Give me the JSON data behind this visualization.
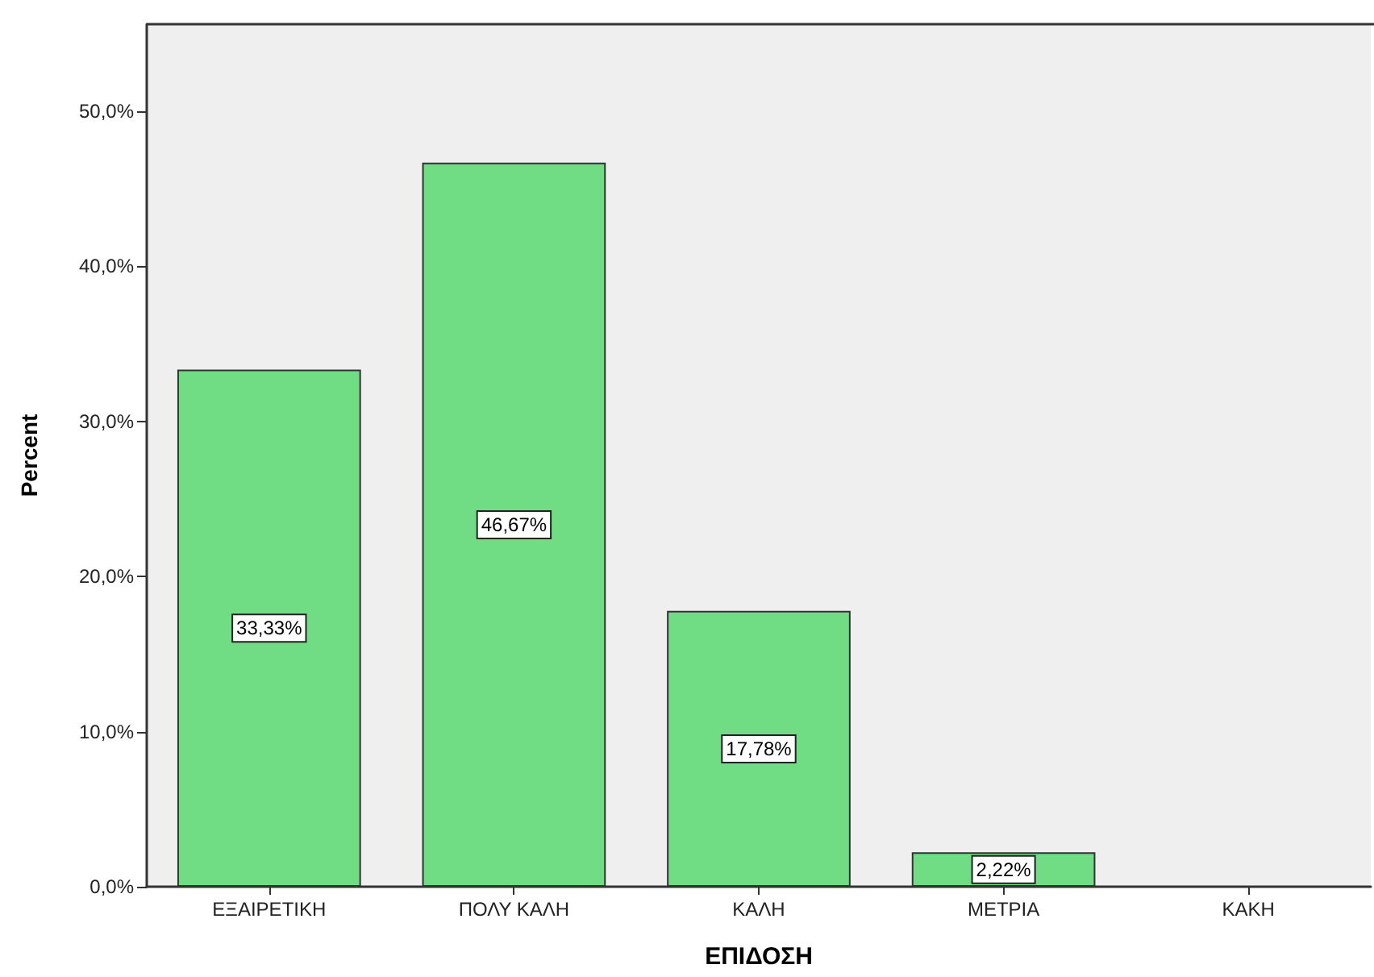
{
  "chart_data": {
    "type": "bar",
    "xlabel": "ΕΠΙΔΟΣΗ",
    "ylabel": "Percent",
    "categories": [
      "ΕΞΑΙΡΕΤΙΚΗ",
      "ΠΟΛΥ ΚΑΛΗ",
      "ΚΑΛΗ",
      "ΜΕΤΡΙΑ",
      "ΚΑΚΗ"
    ],
    "values": [
      33.33,
      46.67,
      17.78,
      2.22,
      0
    ],
    "value_labels": [
      "33,33%",
      "46,67%",
      "17,78%",
      "2,22%",
      null
    ],
    "color": "#70dc84",
    "ylim": [
      0,
      55.6
    ],
    "yticks": [
      {
        "value": 0,
        "label": "0,0%"
      },
      {
        "value": 10,
        "label": "10,0%"
      },
      {
        "value": 20,
        "label": "20,0%"
      },
      {
        "value": 30,
        "label": "30,0%"
      },
      {
        "value": 40,
        "label": "40,0%"
      },
      {
        "value": 50,
        "label": "50,0%"
      }
    ],
    "grid": false
  }
}
